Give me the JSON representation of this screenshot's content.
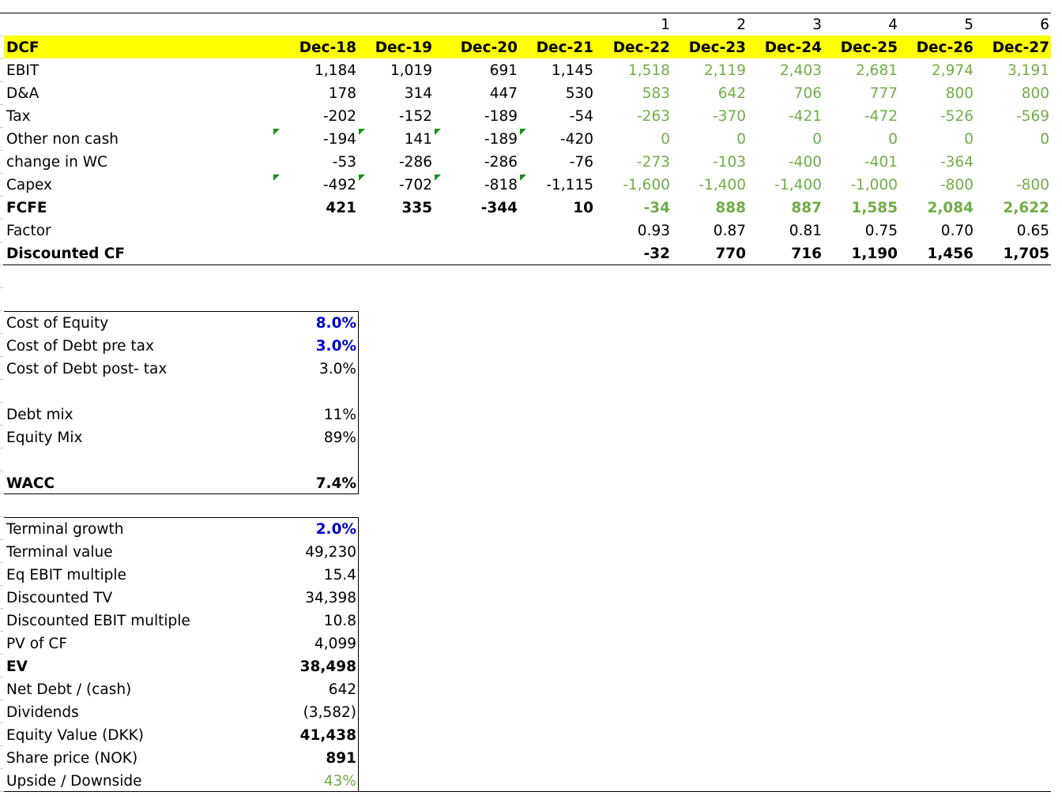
{
  "period_numbers": [
    "1",
    "2",
    "3",
    "4",
    "5",
    "6"
  ],
  "dcf": {
    "title": "DCF",
    "periods": [
      "Dec-18",
      "Dec-19",
      "Dec-20",
      "Dec-21",
      "Dec-22",
      "Dec-23",
      "Dec-24",
      "Dec-25",
      "Dec-26",
      "Dec-27"
    ],
    "rows": [
      {
        "label": "EBIT",
        "values": [
          "1,184",
          "1,019",
          "691",
          "1,145",
          "1,518",
          "2,119",
          "2,403",
          "2,681",
          "2,974",
          "3,191"
        ]
      },
      {
        "label": "D&A",
        "values": [
          "178",
          "314",
          "447",
          "530",
          "583",
          "642",
          "706",
          "777",
          "800",
          "800"
        ]
      },
      {
        "label": "Tax",
        "values": [
          "-202",
          "-152",
          "-189",
          "-54",
          "-263",
          "-370",
          "-421",
          "-472",
          "-526",
          "-569"
        ]
      },
      {
        "label": "Other non cash",
        "values": [
          "-194",
          "141",
          "-189",
          "-420",
          "0",
          "0",
          "0",
          "0",
          "0",
          "0"
        ]
      },
      {
        "label": "change in WC",
        "values": [
          "-53",
          "-286",
          "-286",
          "-76",
          "-273",
          "-103",
          "-400",
          "-401",
          "-364",
          ""
        ]
      },
      {
        "label": "Capex",
        "values": [
          "-492",
          "-702",
          "-818",
          "-1,115",
          "-1,600",
          "-1,400",
          "-1,400",
          "-1,000",
          "-800",
          "-800"
        ]
      },
      {
        "label": "FCFE",
        "values": [
          "421",
          "335",
          "-344",
          "10",
          "-34",
          "888",
          "887",
          "1,585",
          "2,084",
          "2,622"
        ]
      },
      {
        "label": "Factor",
        "values": [
          "",
          "",
          "",
          "",
          "0.93",
          "0.87",
          "0.81",
          "0.75",
          "0.70",
          "0.65"
        ]
      },
      {
        "label": "Discounted CF",
        "values": [
          "",
          "",
          "",
          "",
          "-32",
          "770",
          "716",
          "1,190",
          "1,456",
          "1,705"
        ]
      }
    ]
  },
  "wacc": {
    "rows": [
      {
        "label": "Cost of Equity",
        "value": "8.0%"
      },
      {
        "label": "Cost of Debt pre tax",
        "value": "3.0%"
      },
      {
        "label": "Cost of Debt post- tax",
        "value": "3.0%"
      },
      {
        "label": "Debt mix",
        "value": "11%"
      },
      {
        "label": "Equity Mix",
        "value": "89%"
      },
      {
        "label": "WACC",
        "value": "7.4%"
      }
    ]
  },
  "valuation": {
    "rows": [
      {
        "label": "Terminal growth",
        "value": "2.0%"
      },
      {
        "label": "Terminal value",
        "value": "49,230"
      },
      {
        "label": "Eq EBIT multiple",
        "value": "15.4"
      },
      {
        "label": "Discounted TV",
        "value": "34,398"
      },
      {
        "label": "Discounted EBIT multiple",
        "value": "10.8"
      },
      {
        "label": "PV of CF",
        "value": "4,099"
      },
      {
        "label": "EV",
        "value": "38,498"
      },
      {
        "label": "Net Debt / (cash)",
        "value": "642"
      },
      {
        "label": "Dividends",
        "value": "(3,582)"
      },
      {
        "label": "Equity Value (DKK)",
        "value": "41,438"
      },
      {
        "label": "Share price (NOK)",
        "value": "891"
      },
      {
        "label": "Upside / Downside",
        "value": "43%"
      }
    ]
  },
  "colors": {
    "highlight": "#ffff00",
    "forecast": "#70ad47",
    "input": "#0000cc",
    "error_flag": "#1a8f1a"
  }
}
